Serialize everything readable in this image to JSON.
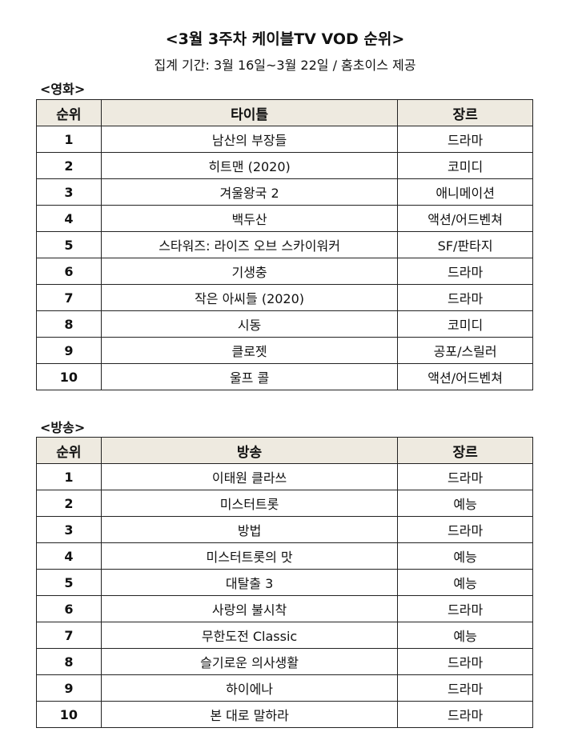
{
  "title": "<3월 3주차 케이블TV VOD 순위>",
  "subtitle": "집계 기간: 3월 16일~3월 22일 / 홈초이스 제공",
  "movies": {
    "label": "<영화>",
    "headers": [
      "순위",
      "타이틀",
      "장르"
    ],
    "rows": [
      {
        "rank": "1",
        "title": "남산의 부장들",
        "genre": "드라마"
      },
      {
        "rank": "2",
        "title": "히트맨 (2020)",
        "genre": "코미디"
      },
      {
        "rank": "3",
        "title": "겨울왕국 2",
        "genre": "애니메이션"
      },
      {
        "rank": "4",
        "title": "백두산",
        "genre": "액션/어드벤쳐"
      },
      {
        "rank": "5",
        "title": "스타워즈: 라이즈 오브 스카이워커",
        "genre": "SF/판타지"
      },
      {
        "rank": "6",
        "title": "기생충",
        "genre": "드라마"
      },
      {
        "rank": "7",
        "title": "작은 아씨들 (2020)",
        "genre": "드라마"
      },
      {
        "rank": "8",
        "title": "시동",
        "genre": "코미디"
      },
      {
        "rank": "9",
        "title": "클로젯",
        "genre": "공포/스릴러"
      },
      {
        "rank": "10",
        "title": "울프 콜",
        "genre": "액션/어드벤쳐"
      }
    ]
  },
  "broadcast": {
    "label": "<방송>",
    "headers": [
      "순위",
      "방송",
      "장르"
    ],
    "rows": [
      {
        "rank": "1",
        "title": "이태원 클라쓰",
        "genre": "드라마"
      },
      {
        "rank": "2",
        "title": "미스터트롯",
        "genre": "예능"
      },
      {
        "rank": "3",
        "title": "방법",
        "genre": "드라마"
      },
      {
        "rank": "4",
        "title": "미스터트롯의 맛",
        "genre": "예능"
      },
      {
        "rank": "5",
        "title": "대탈출 3",
        "genre": "예능"
      },
      {
        "rank": "6",
        "title": "사랑의 불시착",
        "genre": "드라마"
      },
      {
        "rank": "7",
        "title": "무한도전 Classic",
        "genre": "예능"
      },
      {
        "rank": "8",
        "title": "슬기로운 의사생활",
        "genre": "드라마"
      },
      {
        "rank": "9",
        "title": "하이에나",
        "genre": "드라마"
      },
      {
        "rank": "10",
        "title": "본 대로 말하라",
        "genre": "드라마"
      }
    ]
  },
  "colors": {
    "header_fill": "#eeeae0"
  }
}
